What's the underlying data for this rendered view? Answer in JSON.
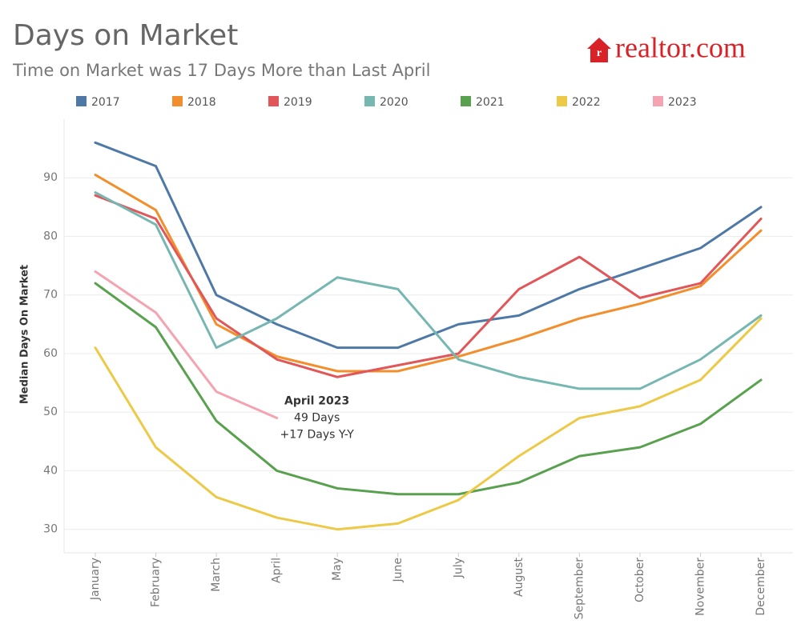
{
  "chart_data": {
    "type": "line",
    "title": "Days on Market",
    "subtitle": "Time on Market was 17 Days More than Last April",
    "logo": "realtor.com",
    "y_label": "Median Days On Market",
    "categories": [
      "January",
      "February",
      "March",
      "April",
      "May",
      "June",
      "July",
      "August",
      "September",
      "October",
      "November",
      "December"
    ],
    "series": [
      {
        "name": "2017",
        "color": "#4e79a7",
        "values": [
          96,
          92,
          70,
          65,
          61,
          61,
          65,
          66.5,
          71,
          74.5,
          78,
          85
        ]
      },
      {
        "name": "2018",
        "color": "#f28e2b",
        "values": [
          90.5,
          84.5,
          65,
          59.5,
          57,
          57,
          59.5,
          62.5,
          66,
          68.5,
          71.5,
          81
        ]
      },
      {
        "name": "2019",
        "color": "#e15759",
        "values": [
          87,
          83,
          66,
          59,
          56,
          58,
          60,
          71,
          76.5,
          69.5,
          72,
          83
        ]
      },
      {
        "name": "2020",
        "color": "#76b7b2",
        "values": [
          87.5,
          82,
          61,
          66,
          73,
          71,
          59,
          56,
          54,
          54,
          59,
          66.5
        ]
      },
      {
        "name": "2021",
        "color": "#59a14f",
        "values": [
          72,
          64.5,
          48.5,
          40,
          37,
          36,
          36,
          38,
          42.5,
          44,
          48,
          55.5
        ]
      },
      {
        "name": "2022",
        "color": "#edc948",
        "values": [
          61,
          44,
          35.5,
          32,
          30,
          31,
          35,
          42.5,
          49,
          51,
          55.5,
          66
        ]
      },
      {
        "name": "2023",
        "color": "#f4a3b0",
        "values": [
          74,
          67,
          53.5,
          49,
          null,
          null,
          null,
          null,
          null,
          null,
          null,
          null
        ]
      }
    ],
    "annotation": {
      "lines": [
        "April 2023",
        "49 Days",
        "+17 Days Y-Y"
      ]
    },
    "ylim": [
      26,
      100
    ],
    "yticks": [
      30,
      40,
      50,
      60,
      70,
      80,
      90
    ],
    "grid": true,
    "legend": "top"
  }
}
